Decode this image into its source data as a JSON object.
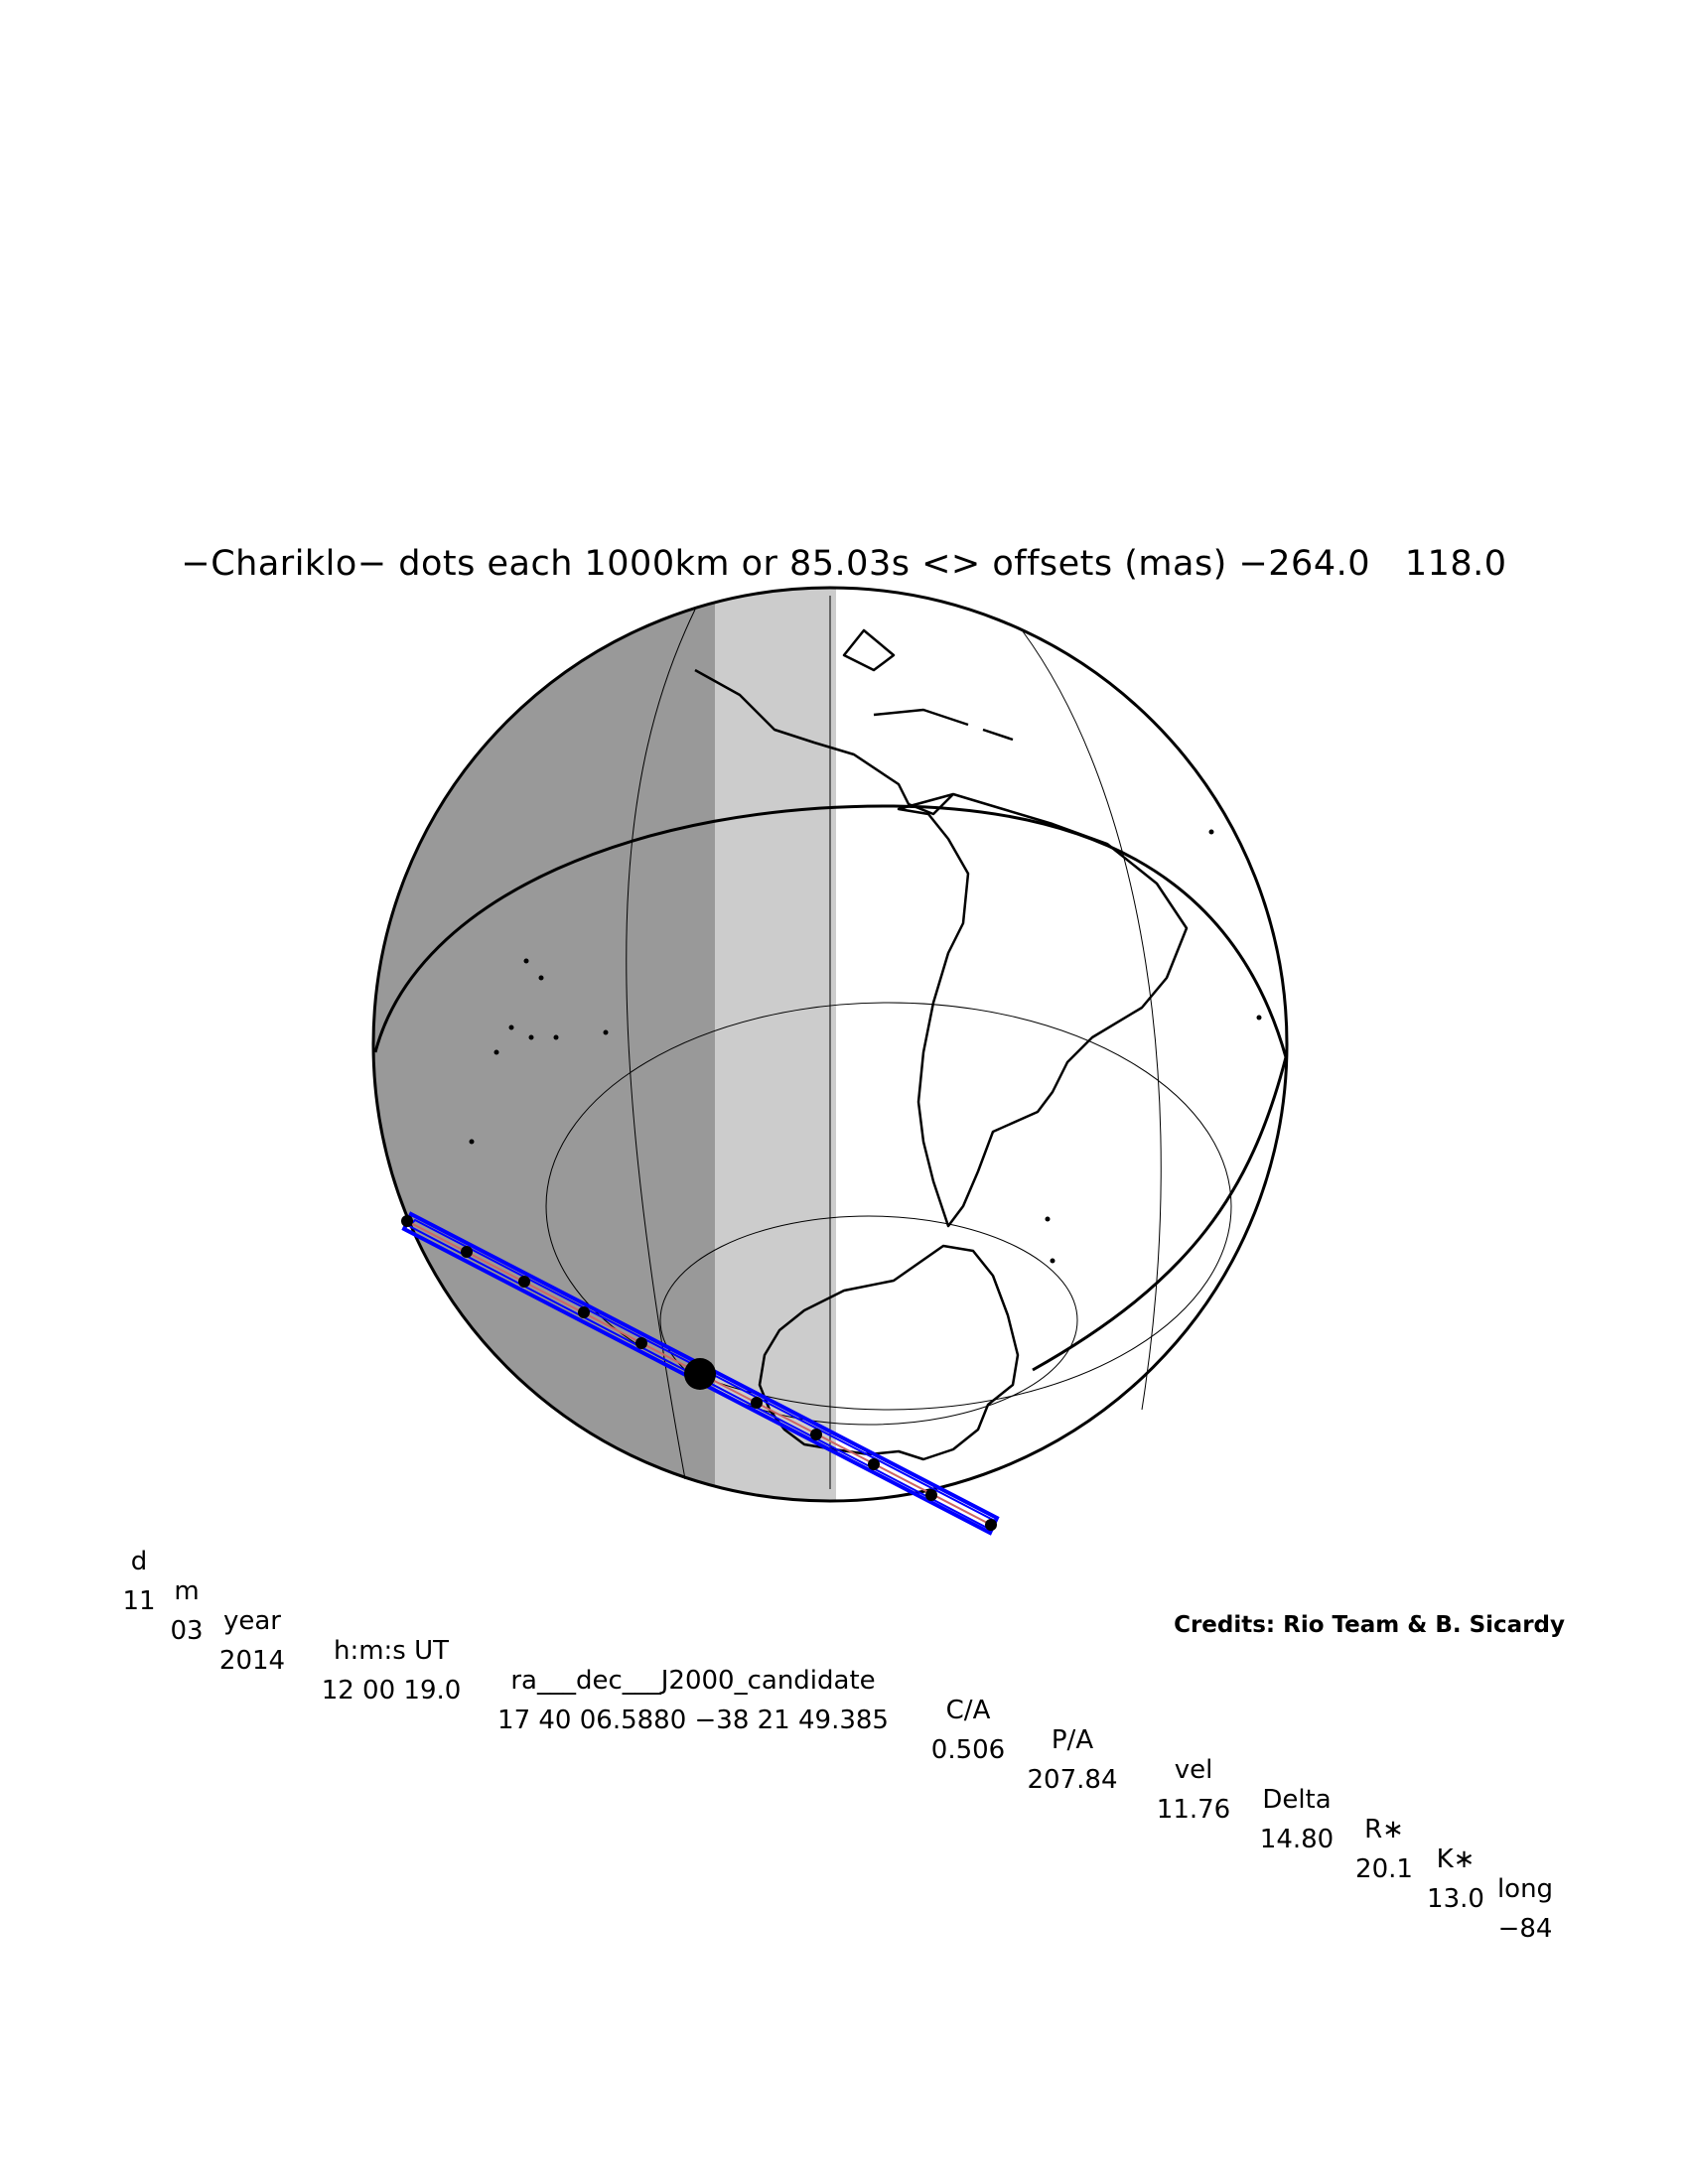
{
  "title": "−Chariklo− dots each 1000km or 85.03s <> offsets (mas) −264.0   118.0",
  "table": {
    "headers": [
      "d",
      "m",
      "year",
      "h:m:s UT",
      "ra___dec___J2000_candidate",
      "C/A",
      "P/A",
      "vel",
      "Delta",
      "R∗",
      "K∗",
      "long"
    ],
    "values": [
      "11",
      "03",
      "2014",
      "12 00 19.0",
      "17 40 06.5880 −38 21 49.385",
      "0.506",
      "207.84",
      "11.76",
      "14.80",
      "20.1",
      "13.0",
      "−84"
    ]
  },
  "credits": "Credits: Rio Team & B. Sicardy",
  "colors": {
    "night": "#999999",
    "twilight": "#cccccc",
    "day": "#ffffff",
    "path_outline": "#0000ff",
    "centerline": "#cc6666",
    "coast": "#000000"
  }
}
